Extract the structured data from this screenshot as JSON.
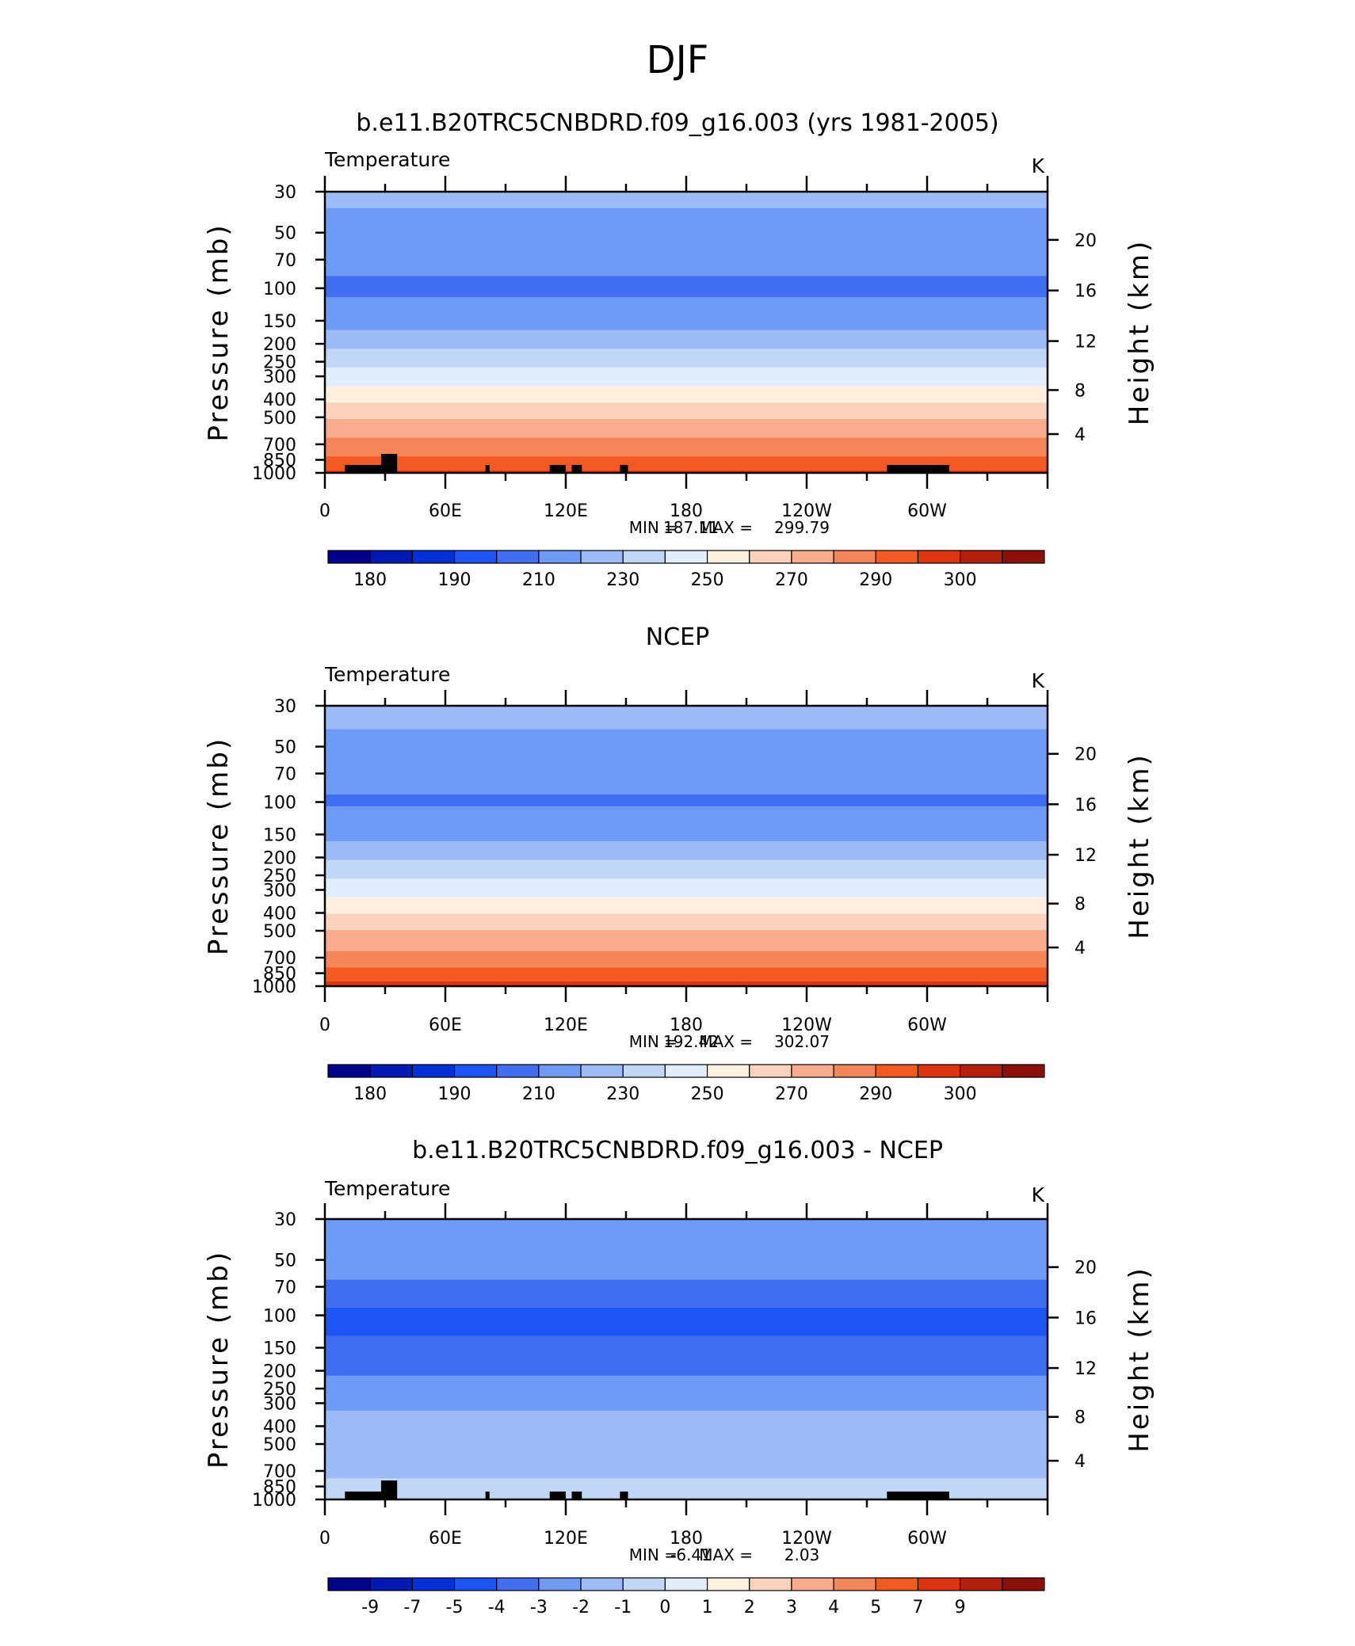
{
  "figure_title": "DJF",
  "chart_data": [
    {
      "type": "heatmap",
      "panel_title": "b.e11.B20TRC5CNBDRD.f09_g16.003 (yrs 1981-2005)",
      "variable_label": "Temperature",
      "units_label": "K",
      "xlabel": "",
      "ylabel": "Pressure (mb)",
      "y2label": "Height (km)",
      "x_tick_labels": [
        "0",
        "60E",
        "120E",
        "180",
        "120W",
        "60W"
      ],
      "y_tick_labels": [
        "30",
        "50",
        "70",
        "100",
        "150",
        "200",
        "250",
        "300",
        "400",
        "500",
        "700",
        "850",
        "1000"
      ],
      "y2_tick_labels": [
        "20",
        "16",
        "12",
        "8",
        "4"
      ],
      "ylim": [
        1000,
        30
      ],
      "xlim": [
        0,
        360
      ],
      "stats": {
        "min_label": "MIN =",
        "min": "187.11",
        "max_label": "MAX =",
        "max": "299.79"
      },
      "colorbar_labels": [
        "180",
        "190",
        "210",
        "230",
        "250",
        "270",
        "290",
        "300"
      ],
      "colorbar_levels": [
        175,
        180,
        185,
        190,
        200,
        210,
        220,
        230,
        240,
        250,
        260,
        270,
        280,
        290,
        295,
        300
      ],
      "profile": [
        {
          "p": 30,
          "value": 212
        },
        {
          "p": 50,
          "value": 207
        },
        {
          "p": 70,
          "value": 203
        },
        {
          "p": 100,
          "value": 198
        },
        {
          "p": 150,
          "value": 205
        },
        {
          "p": 200,
          "value": 217
        },
        {
          "p": 250,
          "value": 227
        },
        {
          "p": 300,
          "value": 235
        },
        {
          "p": 400,
          "value": 248
        },
        {
          "p": 500,
          "value": 259
        },
        {
          "p": 700,
          "value": 273
        },
        {
          "p": 850,
          "value": 282
        },
        {
          "p": 1000,
          "value": 292
        }
      ]
    },
    {
      "type": "heatmap",
      "panel_title": "NCEP",
      "variable_label": "Temperature",
      "units_label": "K",
      "xlabel": "",
      "ylabel": "Pressure (mb)",
      "y2label": "Height (km)",
      "x_tick_labels": [
        "0",
        "60E",
        "120E",
        "180",
        "120W",
        "60W"
      ],
      "y_tick_labels": [
        "30",
        "50",
        "70",
        "100",
        "150",
        "200",
        "250",
        "300",
        "400",
        "500",
        "700",
        "850",
        "1000"
      ],
      "y2_tick_labels": [
        "20",
        "16",
        "12",
        "8",
        "4"
      ],
      "ylim": [
        1000,
        30
      ],
      "xlim": [
        0,
        360
      ],
      "stats": {
        "min_label": "MIN =",
        "min": "192.42",
        "max_label": "MAX =",
        "max": "302.07"
      },
      "colorbar_labels": [
        "180",
        "190",
        "210",
        "230",
        "250",
        "270",
        "290",
        "300"
      ],
      "colorbar_levels": [
        175,
        180,
        185,
        190,
        200,
        210,
        220,
        230,
        240,
        250,
        260,
        270,
        280,
        290,
        295,
        300
      ],
      "profile": [
        {
          "p": 30,
          "value": 213
        },
        {
          "p": 50,
          "value": 208
        },
        {
          "p": 70,
          "value": 203
        },
        {
          "p": 100,
          "value": 199
        },
        {
          "p": 150,
          "value": 206
        },
        {
          "p": 200,
          "value": 218
        },
        {
          "p": 250,
          "value": 228
        },
        {
          "p": 300,
          "value": 236
        },
        {
          "p": 400,
          "value": 249
        },
        {
          "p": 500,
          "value": 260
        },
        {
          "p": 700,
          "value": 274
        },
        {
          "p": 850,
          "value": 284
        },
        {
          "p": 1000,
          "value": 294
        }
      ]
    },
    {
      "type": "heatmap",
      "panel_title": "b.e11.B20TRC5CNBDRD.f09_g16.003 - NCEP",
      "variable_label": "Temperature",
      "units_label": "K",
      "xlabel": "",
      "ylabel": "Pressure (mb)",
      "y2label": "Height (km)",
      "x_tick_labels": [
        "0",
        "60E",
        "120E",
        "180",
        "120W",
        "60W"
      ],
      "y_tick_labels": [
        "30",
        "50",
        "70",
        "100",
        "150",
        "200",
        "250",
        "300",
        "400",
        "500",
        "700",
        "850",
        "1000"
      ],
      "y2_tick_labels": [
        "20",
        "16",
        "12",
        "8",
        "4"
      ],
      "ylim": [
        1000,
        30
      ],
      "xlim": [
        0,
        360
      ],
      "stats": {
        "min_label": "MIN =",
        "min": "-6.41",
        "max_label": "MAX =",
        "max": "2.03"
      },
      "colorbar_labels": [
        "-9",
        "-7",
        "-5",
        "-4",
        "-3",
        "-2",
        "-1",
        "0",
        "1",
        "2",
        "3",
        "4",
        "5",
        "7",
        "9"
      ],
      "colorbar_levels": [
        -9,
        -7,
        -5,
        -4,
        -3,
        -2,
        -1,
        0,
        1,
        2,
        3,
        4,
        5,
        7,
        9
      ],
      "profile": [
        {
          "p": 30,
          "value": -2.5
        },
        {
          "p": 50,
          "value": -2.3
        },
        {
          "p": 70,
          "value": -3.2
        },
        {
          "p": 100,
          "value": -4.3
        },
        {
          "p": 150,
          "value": -3.8
        },
        {
          "p": 200,
          "value": -3.2
        },
        {
          "p": 250,
          "value": -2.6
        },
        {
          "p": 300,
          "value": -2.2
        },
        {
          "p": 400,
          "value": -1.6
        },
        {
          "p": 500,
          "value": -1.4
        },
        {
          "p": 700,
          "value": -1.3
        },
        {
          "p": 850,
          "value": -0.6
        },
        {
          "p": 1000,
          "value": -0.8
        }
      ]
    }
  ],
  "palette": [
    "#00008c",
    "#0018b4",
    "#0030d8",
    "#1e55f7",
    "#416ef2",
    "#6f9af6",
    "#9cbbf7",
    "#c2d6f8",
    "#e2edfb",
    "#fff0e0",
    "#fbd3bd",
    "#f8ab8d",
    "#f68559",
    "#f45a24",
    "#de3510",
    "#b3210d",
    "#8c0e08"
  ]
}
